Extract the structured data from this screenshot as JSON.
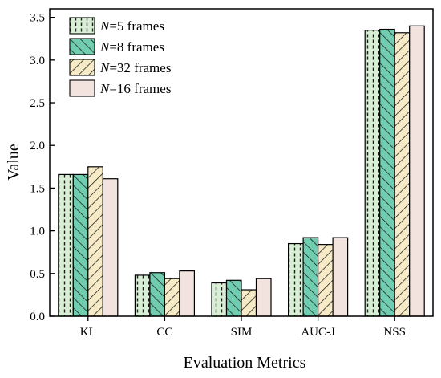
{
  "chart_data": {
    "type": "bar",
    "title": "",
    "xlabel": "Evaluation Metrics",
    "ylabel": "Value",
    "ylim": [
      0,
      3.6
    ],
    "yticks": [
      "0.0",
      "0.5",
      "1.0",
      "1.5",
      "2.0",
      "2.5",
      "3.0",
      "3.5"
    ],
    "categories": [
      "KL",
      "CC",
      "SIM",
      "AUC-J",
      "NSS"
    ],
    "legend_position": "top-left",
    "series": [
      {
        "name": "N=5 frames",
        "name_italic": "N",
        "name_rest": "=5 frames",
        "pattern": "dotted-vertical",
        "fill": "#d8eed5",
        "values": [
          1.66,
          0.48,
          0.39,
          0.85,
          3.35
        ]
      },
      {
        "name": "N=8 frames",
        "name_italic": "N",
        "name_rest": "=8 frames",
        "pattern": "diagonal-forward",
        "fill": "#70cdb0",
        "values": [
          1.66,
          0.51,
          0.42,
          0.92,
          3.36
        ]
      },
      {
        "name": "N=32 frames",
        "name_italic": "N",
        "name_rest": "=32 frames",
        "pattern": "diagonal-backward",
        "fill": "#f6ebc6",
        "values": [
          1.75,
          0.44,
          0.31,
          0.84,
          3.32
        ]
      },
      {
        "name": "N=16 frames",
        "name_italic": "N",
        "name_rest": "=16 frames",
        "pattern": "solid",
        "fill": "#f3e3de",
        "values": [
          1.61,
          0.53,
          0.44,
          0.92,
          3.4
        ]
      }
    ]
  }
}
